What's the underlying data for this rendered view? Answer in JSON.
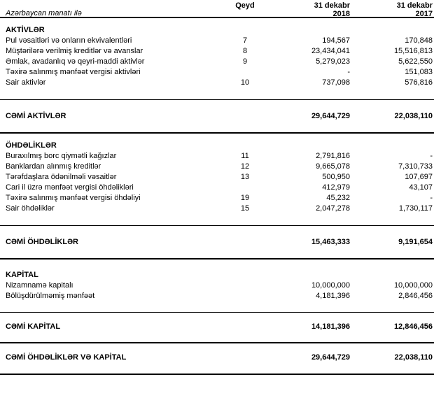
{
  "header": {
    "currency_note": "Azərbaycan manatı ilə",
    "note_col": "Qeyd",
    "col_2018": {
      "line1": "31 dekabr",
      "line2": "2018"
    },
    "col_2017": {
      "line1": "31 dekabr",
      "line2": "2017"
    }
  },
  "sections": [
    {
      "title": "AKTİVLƏR",
      "rows": [
        {
          "label": "Pul vəsaitləri və onların ekvivalentləri",
          "qeyd": "7",
          "v2018": "194,567",
          "v2017": "170,848"
        },
        {
          "label": "Müştərilərə verilmiş kreditlər və avanslar",
          "qeyd": "8",
          "v2018": "23,434,041",
          "v2017": "15,516,813"
        },
        {
          "label": "Əmlak, avadanlıq və qeyri-maddi aktivlər",
          "qeyd": "9",
          "v2018": "5,279,023",
          "v2017": "5,622,550"
        },
        {
          "label": "Təxirə salınmış mənfəət vergisi aktivləri",
          "qeyd": "",
          "v2018": "-",
          "v2017": "151,083"
        },
        {
          "label": "Sair aktivlər",
          "qeyd": "10",
          "v2018": "737,098",
          "v2017": "576,816"
        }
      ],
      "total": {
        "label": "CƏMİ AKTİVLƏR",
        "v2018": "29,644,729",
        "v2017": "22,038,110"
      }
    },
    {
      "title": "ÖHDƏLİKLƏR",
      "rows": [
        {
          "label": "Buraxılmış borc qiymətli kağızlar",
          "qeyd": "11",
          "v2018": "2,791,816",
          "v2017": "-"
        },
        {
          "label": "Banklardan alınmış kreditlər",
          "qeyd": "12",
          "v2018": "9,665,078",
          "v2017": "7,310,733"
        },
        {
          "label": "Tərəfdaşlara ödənilməli vəsaitlər",
          "qeyd": "13",
          "v2018": "500,950",
          "v2017": "107,697"
        },
        {
          "label": "Cari il üzrə mənfəət vergisi öhdəlikləri",
          "qeyd": "",
          "v2018": "412,979",
          "v2017": "43,107"
        },
        {
          "label": "Təxirə salınmış mənfəət vergisi öhdəliyi",
          "qeyd": "19",
          "v2018": "45,232",
          "v2017": "-"
        },
        {
          "label": "Sair öhdəliklər",
          "qeyd": "15",
          "v2018": "2,047,278",
          "v2017": "1,730,117"
        }
      ],
      "total": {
        "label": "CƏMİ ÖHDƏLİKLƏR",
        "v2018": "15,463,333",
        "v2017": "9,191,654"
      }
    },
    {
      "title": "KAPİTAL",
      "rows": [
        {
          "label": "Nizamnamə kapitalı",
          "qeyd": "",
          "v2018": "10,000,000",
          "v2017": "10,000,000"
        },
        {
          "label": "Bölüşdürülməmiş mənfəət",
          "qeyd": "",
          "v2018": "4,181,396",
          "v2017": "2,846,456"
        }
      ],
      "total": {
        "label": "CƏMİ KAPİTAL",
        "v2018": "14,181,396",
        "v2017": "12,846,456"
      }
    }
  ],
  "grand_total": {
    "label": "CƏMİ ÖHDƏLİKLƏR VƏ KAPİTAL",
    "v2018": "29,644,729",
    "v2017": "22,038,110"
  }
}
